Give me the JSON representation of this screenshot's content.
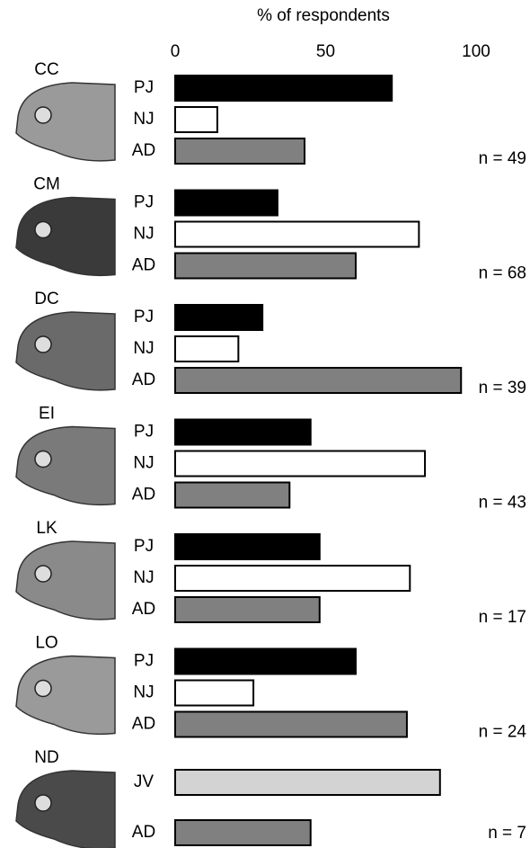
{
  "chart_data": {
    "type": "bar",
    "title": "% of respondents",
    "xlim": [
      0,
      100
    ],
    "xticks": [
      0,
      50,
      100
    ],
    "panels": [
      {
        "label": "CC",
        "annotation": "n = 49",
        "categories": [
          "PJ",
          "NJ",
          "AD"
        ],
        "values": [
          72,
          14,
          43
        ],
        "colors": [
          "#000000",
          "#ffffff",
          "#808080"
        ]
      },
      {
        "label": "CM",
        "annotation": "n = 68",
        "categories": [
          "PJ",
          "NJ",
          "AD"
        ],
        "values": [
          34,
          81,
          60
        ],
        "colors": [
          "#000000",
          "#ffffff",
          "#808080"
        ]
      },
      {
        "label": "DC",
        "annotation": "n = 39",
        "categories": [
          "PJ",
          "NJ",
          "AD"
        ],
        "values": [
          29,
          21,
          95
        ],
        "colors": [
          "#000000",
          "#ffffff",
          "#808080"
        ]
      },
      {
        "label": "EI",
        "annotation": "n = 43",
        "categories": [
          "PJ",
          "NJ",
          "AD"
        ],
        "values": [
          45,
          83,
          38
        ],
        "colors": [
          "#000000",
          "#ffffff",
          "#808080"
        ]
      },
      {
        "label": "LK",
        "annotation": "n = 17",
        "categories": [
          "PJ",
          "NJ",
          "AD"
        ],
        "values": [
          48,
          78,
          48
        ],
        "colors": [
          "#000000",
          "#ffffff",
          "#808080"
        ]
      },
      {
        "label": "LO",
        "annotation": "n = 24",
        "categories": [
          "PJ",
          "NJ",
          "AD"
        ],
        "values": [
          60,
          26,
          77
        ],
        "colors": [
          "#000000",
          "#ffffff",
          "#808080"
        ]
      },
      {
        "label": "ND",
        "annotation": "n = 7",
        "categories": [
          "JV",
          "AD"
        ],
        "values": [
          88,
          45
        ],
        "colors": [
          "#d3d3d3",
          "#808080"
        ]
      }
    ]
  }
}
